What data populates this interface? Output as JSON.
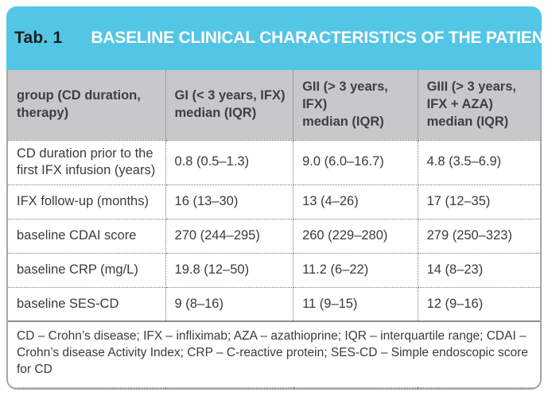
{
  "title_bar": {
    "label": "Tab. 1",
    "title": "BASELINE CLINICAL CHARACTERISTICS OF THE PATIENTS"
  },
  "colors": {
    "accent": "#53c6e6",
    "header_bg": "#c7c8ca",
    "frame_border": "#a5a6a8",
    "divider": "#77787a",
    "text": "#3a3b3c",
    "title_label": "#1c1c1a",
    "title_text": "#ffffff"
  },
  "table": {
    "columns": [
      {
        "header": "group (CD duration, therapy)"
      },
      {
        "group": "GI (< 3 years, IFX)",
        "stat": "median (IQR)"
      },
      {
        "group": "GII (> 3 years, IFX)",
        "stat": "median (IQR)"
      },
      {
        "group": "GIII (> 3 years, IFX + AZA)",
        "stat": "median (IQR)"
      }
    ],
    "rows": [
      {
        "label": "CD duration prior to the first IFX infusion (years)",
        "values": [
          "0.8 (0.5–1.3)",
          "9.0 (6.0–16.7)",
          "4.8 (3.5–6.9)"
        ]
      },
      {
        "label": "IFX follow-up (months)",
        "values": [
          "16 (13–30)",
          "13 (4–26)",
          "17 (12–35)"
        ]
      },
      {
        "label": "baseline CDAI score",
        "values": [
          "270 (244–295)",
          "260 (229–280)",
          "279 (250–323)"
        ]
      },
      {
        "label": "baseline CRP (mg/L)",
        "values": [
          "19.8 (12–50)",
          "11.2 (6–22)",
          "14 (8–23)"
        ]
      },
      {
        "label": "baseline SES-CD",
        "values": [
          "9 (8–16)",
          "11 (9–15)",
          "12 (9–16)"
        ]
      }
    ],
    "footnote": "CD – Crohn’s disease; IFX – infliximab; AZA – azathioprine; IQR – interquartile range; CDAI – Crohn’s disease Activity Index; CRP – C-reactive protein; SES-CD – Simple endoscopic score for CD"
  }
}
